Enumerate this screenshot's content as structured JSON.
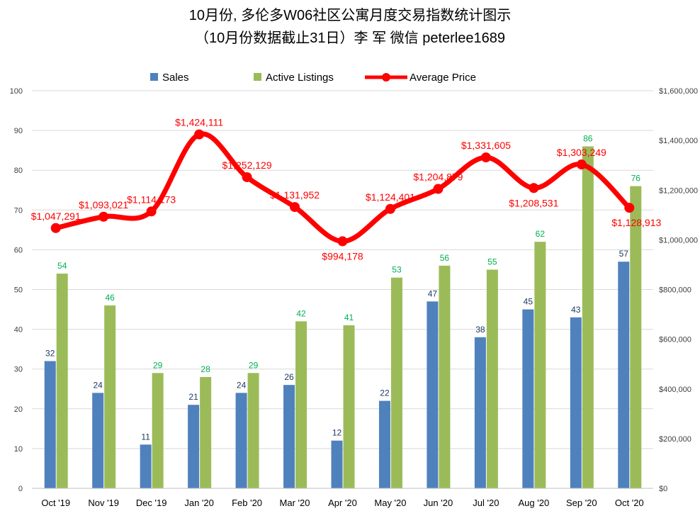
{
  "chart_data": {
    "type": "bar",
    "title_line1": "10月份, 多伦多W06社区公寓月度交易指数统计图示",
    "title_line2": "（10月份数据截止31日）李 军  微信  peterlee1689",
    "categories": [
      "Oct '19",
      "Nov '19",
      "Dec '19",
      "Jan '20",
      "Feb '20",
      "Mar '20",
      "Apr '20",
      "May '20",
      "Jun '20",
      "Jul '20",
      "Aug '20",
      "Sep '20",
      "Oct '20"
    ],
    "series": [
      {
        "name": "Sales",
        "type": "bar",
        "axis": "left",
        "color": "#4f81bd",
        "values": [
          32,
          24,
          11,
          21,
          24,
          26,
          12,
          22,
          47,
          38,
          45,
          43,
          57
        ]
      },
      {
        "name": "Active Listings",
        "type": "bar",
        "axis": "left",
        "color": "#9bbb59",
        "label_color": "#00b050",
        "values": [
          54,
          46,
          29,
          28,
          29,
          42,
          41,
          53,
          56,
          55,
          62,
          86,
          76
        ]
      },
      {
        "name": "Average Price",
        "type": "line",
        "axis": "right",
        "color": "#ff0000",
        "values": [
          1047291,
          1093021,
          1114173,
          1424111,
          1252129,
          1131952,
          994178,
          1124401,
          1204879,
          1331605,
          1208531,
          1303249,
          1128913
        ],
        "labels": [
          "$1,047,291",
          "$1,093,021",
          "$1,114,173",
          "$1,424,111",
          "$1,252,129",
          "$1,131,952",
          "$994,178",
          "$1,124,401",
          "$1,204,879",
          "$1,331,605",
          "$1,208,531",
          "$1,303,249",
          "$1,128,913"
        ]
      }
    ],
    "ylim": [
      0,
      100
    ],
    "yticks": [
      "0",
      "10",
      "20",
      "30",
      "40",
      "50",
      "60",
      "70",
      "80",
      "90",
      "100"
    ],
    "y2lim": [
      0,
      1600000
    ],
    "y2ticks": [
      "$0",
      "$200,000",
      "$400,000",
      "$600,000",
      "$800,000",
      "$1,000,000",
      "$1,200,000",
      "$1,400,000",
      "$1,600,000"
    ],
    "legend": "top",
    "grid": true
  }
}
